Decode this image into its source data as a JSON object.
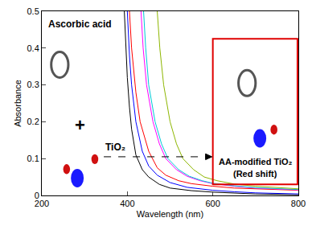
{
  "chart_data": {
    "type": "line",
    "x_label": "Wavelength (nm)",
    "y_label": "Absorbance",
    "xlim": [
      200,
      800
    ],
    "xticks": [
      200,
      400,
      600,
      800
    ],
    "ylim": [
      0,
      0.5
    ],
    "yticks": [
      0,
      0.1,
      0.2,
      0.3,
      0.4,
      0.5
    ],
    "grid": false,
    "annotations": [
      "Ascorbic acid",
      "+",
      "TiO₂",
      "AA-modified TiO₂",
      "(Red shift)"
    ],
    "series": [
      {
        "color": "#000000",
        "x": [
          393,
          397,
          400,
          405,
          410,
          420,
          435,
          450,
          475,
          500,
          550,
          600,
          700,
          800
        ],
        "values": [
          0.5,
          0.4,
          0.32,
          0.24,
          0.18,
          0.11,
          0.07,
          0.05,
          0.03,
          0.02,
          0.013,
          0.009,
          0.004,
          0.002
        ]
      },
      {
        "color": "#0000ff",
        "x": [
          400,
          405,
          410,
          420,
          435,
          450,
          470,
          500,
          540,
          600,
          650,
          700,
          800
        ],
        "values": [
          0.5,
          0.38,
          0.3,
          0.2,
          0.12,
          0.08,
          0.055,
          0.035,
          0.022,
          0.014,
          0.01,
          0.007,
          0.004
        ]
      },
      {
        "color": "#ff0000",
        "x": [
          405,
          410,
          420,
          430,
          450,
          470,
          490,
          520,
          550,
          600,
          650,
          700,
          800
        ],
        "values": [
          0.5,
          0.4,
          0.28,
          0.2,
          0.12,
          0.075,
          0.055,
          0.04,
          0.032,
          0.025,
          0.02,
          0.018,
          0.014
        ]
      },
      {
        "color": "#ff00ff",
        "x": [
          432,
          437,
          445,
          460,
          475,
          490,
          515,
          540,
          570,
          600,
          650,
          700,
          800
        ],
        "values": [
          0.5,
          0.4,
          0.3,
          0.2,
          0.14,
          0.1,
          0.07,
          0.052,
          0.04,
          0.032,
          0.025,
          0.02,
          0.015
        ]
      },
      {
        "color": "#00c8d8",
        "x": [
          438,
          443,
          450,
          465,
          480,
          495,
          520,
          545,
          575,
          600,
          650,
          700,
          800
        ],
        "values": [
          0.5,
          0.4,
          0.3,
          0.2,
          0.14,
          0.1,
          0.07,
          0.052,
          0.04,
          0.033,
          0.026,
          0.021,
          0.016
        ]
      },
      {
        "color": "#8db600",
        "x": [
          470,
          476,
          485,
          500,
          515,
          530,
          555,
          580,
          610,
          650,
          700,
          750,
          800
        ],
        "values": [
          0.5,
          0.4,
          0.3,
          0.2,
          0.14,
          0.1,
          0.07,
          0.05,
          0.04,
          0.031,
          0.025,
          0.021,
          0.018
        ]
      }
    ]
  }
}
